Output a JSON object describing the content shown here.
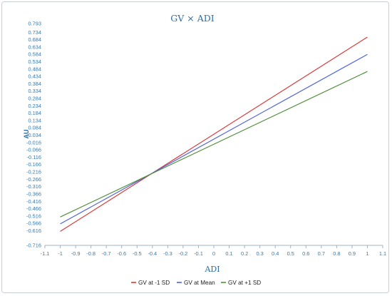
{
  "chart_data": {
    "type": "line",
    "title": "GV × ADI",
    "xlabel": "ADI",
    "ylabel": "AU",
    "xlim": [
      -1.1,
      1.1
    ],
    "ylim": [
      -0.716,
      0.793
    ],
    "x_ticks": [
      "-1.1",
      "-1",
      "-0.9",
      "-0.8",
      "-0.7",
      "-0.6",
      "-0.5",
      "-0.4",
      "-0.3",
      "-0.2",
      "-0.1",
      "0",
      "0.1",
      "0.2",
      "0.3",
      "0.4",
      "0.5",
      "0.6",
      "0.7",
      "0.8",
      "0.9",
      "1",
      "1.1"
    ],
    "y_ticks": [
      "0.793",
      "0.734",
      "0.684",
      "0.634",
      "0.584",
      "0.534",
      "0.484",
      "0.434",
      "0.384",
      "0.334",
      "0.284",
      "0.234",
      "0.184",
      "0.134",
      "0.084",
      "0.034",
      "-0.016",
      "-0.066",
      "-0.116",
      "-0.166",
      "-0.216",
      "-0.266",
      "-0.316",
      "-0.366",
      "-0.416",
      "-0.466",
      "-0.516",
      "-0.566",
      "-0.616",
      "-0.716"
    ],
    "grid": false,
    "legend_position": "bottom",
    "series": [
      {
        "name": "GV at -1 SD",
        "color": "#d93a3a",
        "x": [
          -1,
          1
        ],
        "y": [
          -0.621,
          0.701
        ]
      },
      {
        "name": "GV at Mean",
        "color": "#4f63dd",
        "x": [
          -1,
          1
        ],
        "y": [
          -0.57,
          0.583
        ]
      },
      {
        "name": "GV at +1 SD",
        "color": "#4f8f3a",
        "x": [
          -1,
          1
        ],
        "y": [
          -0.523,
          0.467
        ]
      }
    ]
  }
}
